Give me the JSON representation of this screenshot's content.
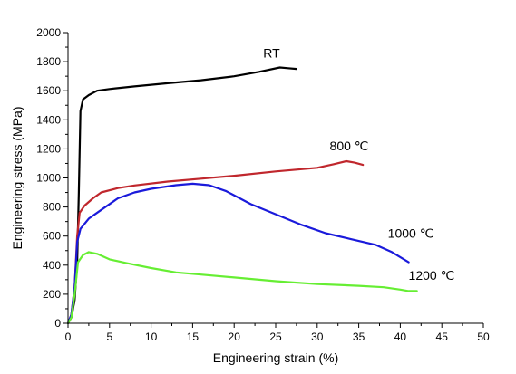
{
  "chart_data": {
    "type": "line",
    "xlabel": "Engineering strain (%)",
    "ylabel": "Engineering stress (MPa)",
    "xlim": [
      0,
      50
    ],
    "ylim": [
      0,
      2000
    ],
    "xticks": [
      0,
      5,
      10,
      15,
      20,
      25,
      30,
      35,
      40,
      45,
      50
    ],
    "yticks": [
      0,
      200,
      400,
      600,
      800,
      1000,
      1200,
      1400,
      1600,
      1800,
      2000
    ],
    "grid": false,
    "series": [
      {
        "name": "RT",
        "color": "#000000",
        "label_at": [
          23.5,
          1830
        ],
        "points": [
          [
            0,
            0
          ],
          [
            0.4,
            40
          ],
          [
            0.8,
            160
          ],
          [
            1.1,
            420
          ],
          [
            1.3,
            900
          ],
          [
            1.5,
            1460
          ],
          [
            1.8,
            1540
          ],
          [
            2.5,
            1570
          ],
          [
            3.5,
            1600
          ],
          [
            5,
            1612
          ],
          [
            8,
            1630
          ],
          [
            12,
            1652
          ],
          [
            16,
            1672
          ],
          [
            20,
            1700
          ],
          [
            23,
            1730
          ],
          [
            25.5,
            1760
          ],
          [
            26.5,
            1755
          ],
          [
            27.5,
            1750
          ]
        ]
      },
      {
        "name": "800 ℃",
        "color": "#c0272d",
        "label_at": [
          31.5,
          1190
        ],
        "points": [
          [
            0,
            0
          ],
          [
            0.4,
            60
          ],
          [
            0.8,
            250
          ],
          [
            1.1,
            600
          ],
          [
            1.4,
            760
          ],
          [
            2,
            810
          ],
          [
            3,
            860
          ],
          [
            4,
            900
          ],
          [
            6,
            930
          ],
          [
            8,
            948
          ],
          [
            12,
            975
          ],
          [
            16,
            995
          ],
          [
            20,
            1015
          ],
          [
            25,
            1045
          ],
          [
            30,
            1070
          ],
          [
            32,
            1095
          ],
          [
            33.5,
            1115
          ],
          [
            34.5,
            1105
          ],
          [
            35.5,
            1090
          ]
        ]
      },
      {
        "name": "1000 ℃",
        "color": "#1a1adb",
        "label_at": [
          38.5,
          590
        ],
        "points": [
          [
            0,
            0
          ],
          [
            0.4,
            60
          ],
          [
            0.8,
            250
          ],
          [
            1.1,
            560
          ],
          [
            1.5,
            650
          ],
          [
            2.5,
            720
          ],
          [
            4,
            780
          ],
          [
            6,
            860
          ],
          [
            8,
            900
          ],
          [
            10,
            925
          ],
          [
            13,
            950
          ],
          [
            15,
            960
          ],
          [
            17,
            950
          ],
          [
            19,
            910
          ],
          [
            22,
            820
          ],
          [
            25,
            750
          ],
          [
            28,
            680
          ],
          [
            31,
            620
          ],
          [
            34,
            580
          ],
          [
            37,
            540
          ],
          [
            39,
            490
          ],
          [
            41,
            420
          ]
        ]
      },
      {
        "name": "1200 ℃",
        "color": "#66ee33",
        "label_at": [
          41,
          300
        ],
        "points": [
          [
            0,
            0
          ],
          [
            0.4,
            40
          ],
          [
            0.8,
            200
          ],
          [
            1.2,
            420
          ],
          [
            1.8,
            470
          ],
          [
            2.5,
            490
          ],
          [
            3.5,
            478
          ],
          [
            5,
            440
          ],
          [
            7,
            415
          ],
          [
            10,
            380
          ],
          [
            13,
            350
          ],
          [
            16,
            335
          ],
          [
            20,
            315
          ],
          [
            25,
            290
          ],
          [
            30,
            270
          ],
          [
            35,
            258
          ],
          [
            38,
            248
          ],
          [
            40,
            232
          ],
          [
            41,
            222
          ],
          [
            42,
            222
          ]
        ]
      }
    ]
  }
}
